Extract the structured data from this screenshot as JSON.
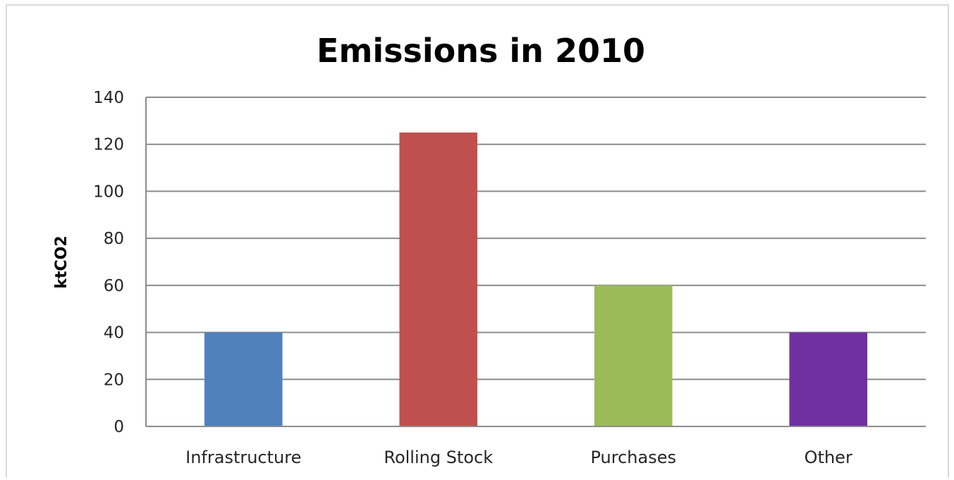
{
  "chart_data": {
    "type": "bar",
    "title": "Emissions in 2010",
    "xlabel": "",
    "ylabel": "ktCO2",
    "ylim": [
      0,
      140
    ],
    "yticks": [
      0,
      20,
      40,
      60,
      80,
      100,
      120,
      140
    ],
    "grid": true,
    "legend": "none",
    "categories": [
      "Infrastructure",
      "Rolling Stock",
      "Purchases",
      "Other"
    ],
    "values": [
      40,
      125,
      60,
      40
    ],
    "colors": [
      "#4f81bd",
      "#c0504d",
      "#9bbb59",
      "#7030a0"
    ]
  }
}
